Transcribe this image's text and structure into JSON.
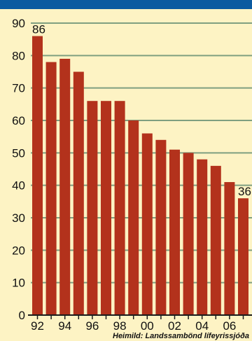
{
  "colors": {
    "background": "#fdf3c4",
    "top_band": "#0b5aa0",
    "bar": "#b3321c",
    "gridline": "#7f9f80",
    "axis": "#1a1a1a",
    "text": "#111111"
  },
  "chart_data": {
    "type": "bar",
    "title": "",
    "xlabel": "",
    "ylabel": "",
    "ylim": [
      0,
      90
    ],
    "yticks": [
      0,
      10,
      20,
      30,
      40,
      50,
      60,
      70,
      80,
      90
    ],
    "categories": [
      "92",
      "93",
      "94",
      "95",
      "96",
      "97",
      "98",
      "99",
      "00",
      "01",
      "02",
      "03",
      "04",
      "05",
      "06",
      "07"
    ],
    "x_tick_labels": [
      "92",
      "",
      "94",
      "",
      "96",
      "",
      "98",
      "",
      "00",
      "",
      "02",
      "",
      "04",
      "",
      "06",
      ""
    ],
    "values": [
      86,
      78,
      79,
      75,
      66,
      66,
      66,
      60,
      56,
      54,
      51,
      50,
      48,
      46,
      41,
      36
    ],
    "data_labels": [
      {
        "index": 0,
        "text": "86"
      },
      {
        "index": 15,
        "text": "36"
      }
    ],
    "grid": true,
    "source": "Heimild: Landssambönd lífeyrissjóða"
  }
}
